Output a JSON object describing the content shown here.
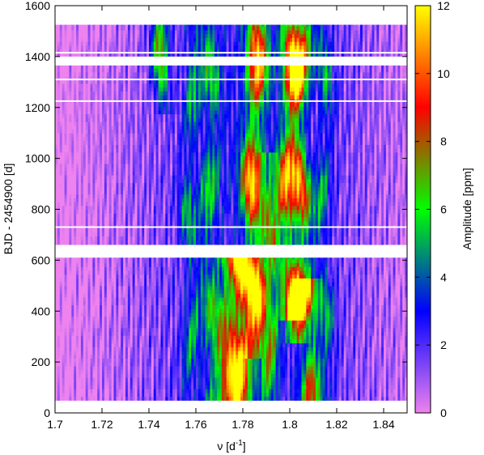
{
  "chart_data": {
    "type": "heatmap",
    "xlabel": "ν [d",
    "xlabel_sup": "-1",
    "xlabel_end": "]",
    "ylabel": "BJD - 2454900 [d]",
    "colorbar_label": "Amplitude [ppm]",
    "xlim": [
      1.7,
      1.85
    ],
    "ylim": [
      0,
      1600
    ],
    "zlim": [
      0,
      12
    ],
    "x_ticks": [
      1.7,
      1.72,
      1.74,
      1.76,
      1.78,
      1.8,
      1.82,
      1.84
    ],
    "x_tick_labels": [
      "1.7",
      "1.72",
      "1.74",
      "1.76",
      "1.78",
      "1.8",
      "1.82",
      "1.84"
    ],
    "y_ticks": [
      0,
      200,
      400,
      600,
      800,
      1000,
      1200,
      1400,
      1600
    ],
    "y_tick_labels": [
      "0",
      "200",
      "400",
      "600",
      "800",
      "1000",
      "1200",
      "1400",
      "1600"
    ],
    "z_ticks": [
      0,
      2,
      4,
      6,
      8,
      10,
      12
    ],
    "z_tick_labels": [
      "0",
      "2",
      "4",
      "6",
      "8",
      "10",
      "12"
    ],
    "colormap": [
      "#ee82ee",
      "#0000ff",
      "#00ff00",
      "#ff0000",
      "#ffff00"
    ],
    "data_time_range": [
      50,
      1525
    ],
    "data_gaps": [
      [
        610,
        660
      ],
      [
        1365,
        1400
      ]
    ],
    "thin_gaps": [
      1415,
      1310,
      1225,
      730
    ],
    "ridges": [
      {
        "x": 1.7785,
        "t0": 50,
        "t1": 620,
        "peak": 11.5,
        "width": 0.0035
      },
      {
        "x": 1.785,
        "t0": 250,
        "t1": 1525,
        "peak": 9.5,
        "width": 0.003
      },
      {
        "x": 1.7995,
        "t0": 400,
        "t1": 1525,
        "peak": 8.5,
        "width": 0.0028
      },
      {
        "x": 1.8045,
        "t0": 300,
        "t1": 1525,
        "peak": 8.5,
        "width": 0.0028
      },
      {
        "x": 1.808,
        "t0": 50,
        "t1": 500,
        "peak": 7.0,
        "width": 0.0028
      },
      {
        "x": 1.772,
        "t0": 50,
        "t1": 600,
        "peak": 5.0,
        "width": 0.003
      },
      {
        "x": 1.792,
        "t0": 50,
        "t1": 1000,
        "peak": 5.0,
        "width": 0.0025
      },
      {
        "x": 1.766,
        "t0": 50,
        "t1": 1525,
        "peak": 4.0,
        "width": 0.003
      },
      {
        "x": 1.746,
        "t0": 1200,
        "t1": 1525,
        "peak": 6.0,
        "width": 0.0025
      },
      {
        "x": 1.8145,
        "t0": 50,
        "t1": 1525,
        "peak": 3.5,
        "width": 0.0025
      },
      {
        "x": 1.7575,
        "t0": 50,
        "t1": 1525,
        "peak": 3.5,
        "width": 0.0025
      }
    ]
  }
}
